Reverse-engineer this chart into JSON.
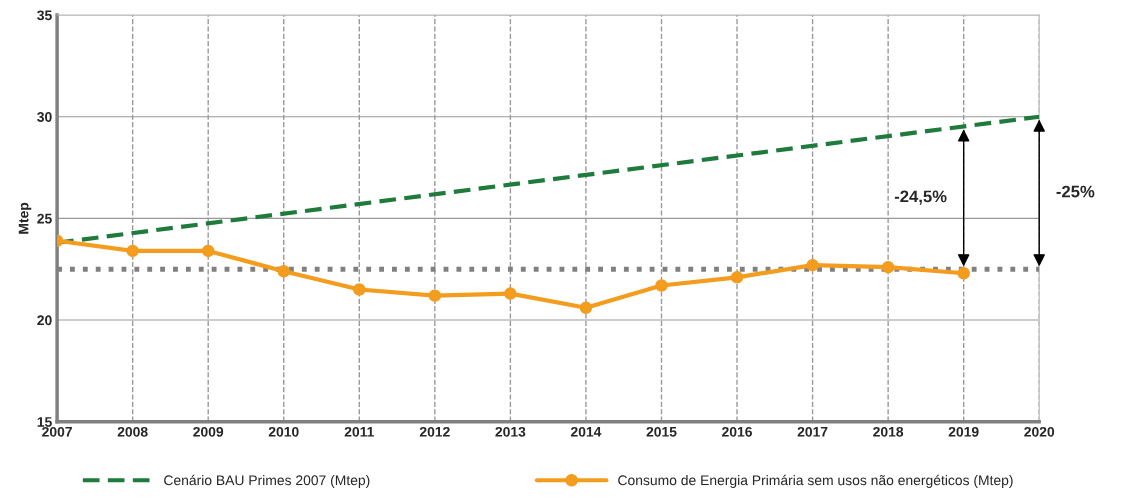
{
  "chart_data": {
    "type": "line",
    "ylabel": "Mtep",
    "series": [
      {
        "name": "Cenário BAU Primes 2007 (Mtep)",
        "color": "#1e7b3c",
        "x": [
          2007,
          2020
        ],
        "values": [
          23.8,
          30.0
        ],
        "line_style": "dashed",
        "marker": "none"
      },
      {
        "name": "Consumo de Energia Primária sem usos não energéticos (Mtep)",
        "color": "#f39c1e",
        "x": [
          2007,
          2008,
          2009,
          2010,
          2011,
          2012,
          2013,
          2014,
          2015,
          2016,
          2017,
          2018,
          2019
        ],
        "values": [
          23.9,
          23.4,
          23.4,
          22.4,
          21.5,
          21.2,
          21.3,
          20.6,
          21.7,
          22.1,
          22.7,
          22.6,
          22.3
        ],
        "line_style": "solid",
        "marker": "circle"
      }
    ],
    "xlim": [
      2007,
      2020
    ],
    "xticks": [
      2007,
      2008,
      2009,
      2010,
      2011,
      2012,
      2013,
      2014,
      2015,
      2016,
      2017,
      2018,
      2019,
      2020
    ],
    "ylim": [
      15,
      35
    ],
    "yticks": [
      15,
      20,
      25,
      30,
      35
    ],
    "ref_lines": [
      {
        "axis": "y",
        "value": 22.5,
        "color": "#808080",
        "line_style": "dotted"
      }
    ],
    "annotations": [
      "-24,5%",
      "-25%"
    ],
    "grid": true,
    "legend": "bottom"
  }
}
